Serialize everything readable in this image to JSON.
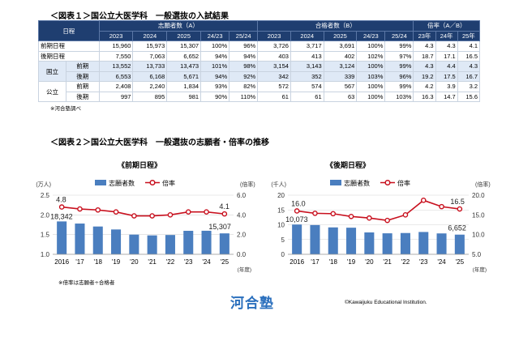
{
  "table1": {
    "title": "＜図表１＞国公立大医学科　一般選抜の入試結果",
    "h_schedule": "日程",
    "h_applicants": "志願者数（A）",
    "h_passers": "合格者数（B）",
    "h_ratio": "倍率（A／B）",
    "cols_a": [
      "2023",
      "2024",
      "2025",
      "24/23",
      "25/24"
    ],
    "cols_b": [
      "2023",
      "2024",
      "2025",
      "25/24"
    ],
    "cols_c": [
      "23年",
      "24年",
      "25年"
    ],
    "rows": [
      {
        "group": "",
        "label": "前期日程",
        "blue": false,
        "cells": [
          "15,960",
          "15,973",
          "15,307",
          "100%",
          "96%",
          "3,726",
          "3,717",
          "3,691",
          "100%",
          "99%",
          "4.3",
          "4.3",
          "4.1"
        ]
      },
      {
        "group": "",
        "label": "後期日程",
        "blue": false,
        "cells": [
          "7,550",
          "7,063",
          "6,652",
          "94%",
          "94%",
          "403",
          "413",
          "402",
          "102%",
          "97%",
          "18.7",
          "17.1",
          "16.5"
        ]
      },
      {
        "group": "国立",
        "label": "前期",
        "blue": true,
        "cells": [
          "13,552",
          "13,733",
          "13,473",
          "101%",
          "98%",
          "3,154",
          "3,143",
          "3,124",
          "100%",
          "99%",
          "4.3",
          "4.4",
          "4.3"
        ]
      },
      {
        "group": "",
        "label": "後期",
        "blue": true,
        "cells": [
          "6,553",
          "6,168",
          "5,671",
          "94%",
          "92%",
          "342",
          "352",
          "339",
          "103%",
          "96%",
          "19.2",
          "17.5",
          "16.7"
        ]
      },
      {
        "group": "公立",
        "label": "前期",
        "blue": false,
        "cells": [
          "2,408",
          "2,240",
          "1,834",
          "93%",
          "82%",
          "572",
          "574",
          "567",
          "100%",
          "99%",
          "4.2",
          "3.9",
          "3.2"
        ]
      },
      {
        "group": "",
        "label": "後期",
        "blue": false,
        "cells": [
          "997",
          "895",
          "981",
          "90%",
          "110%",
          "61",
          "61",
          "63",
          "100%",
          "103%",
          "16.3",
          "14.7",
          "15.6"
        ]
      }
    ],
    "source": "※河合塾調べ"
  },
  "figure2_title": "＜図表２＞国公立大医学科　一般選抜の志願者・倍率の推移",
  "chart_note": "※倍率は志願者÷合格者",
  "legend": {
    "bar": "志願者数",
    "line": "倍率"
  },
  "colors": {
    "bar": "#4a7ebf",
    "line": "#c8101e",
    "header": "#1f3e70",
    "rowblue": "#dfe9f6",
    "logo": "#2a6fbd"
  },
  "logo": "河合塾",
  "copyright": "©Kawaijuku Educational Institution.",
  "chart_data": [
    {
      "type": "bar",
      "title": "《前期日程》",
      "categories": [
        "2016",
        "'17",
        "'18",
        "'19",
        "'20",
        "'21",
        "'22",
        "'23",
        "'24",
        "'25"
      ],
      "series": [
        {
          "name": "志願者数",
          "axis": "left",
          "values": [
            18342,
            17800,
            17050,
            16300,
            15000,
            14800,
            14900,
            15960,
            15973,
            15307
          ]
        },
        {
          "name": "倍率",
          "axis": "right",
          "type": "line",
          "values": [
            4.8,
            4.6,
            4.5,
            4.3,
            3.9,
            3.9,
            4.0,
            4.3,
            4.3,
            4.1
          ]
        }
      ],
      "left_unit": "(万人)",
      "right_unit": "(倍率)",
      "x_unit": "(年度)",
      "ylim_left": [
        1.0,
        2.5
      ],
      "yticks_left": [
        "1.0",
        "1.5",
        "2.0",
        "2.5"
      ],
      "ylim_right": [
        0.0,
        6.0
      ],
      "yticks_right": [
        "0.0",
        "2.0",
        "4.0",
        "6.0"
      ],
      "labels": {
        "first_bar": "18,342",
        "last_bar": "15,307",
        "first_line": "4.8",
        "last_line": "4.1"
      }
    },
    {
      "type": "bar",
      "title": "《後期日程》",
      "categories": [
        "2016",
        "'17",
        "'18",
        "'19",
        "'20",
        "'21",
        "'22",
        "'23",
        "'24",
        "'25"
      ],
      "series": [
        {
          "name": "志願者数",
          "axis": "left",
          "values": [
            10073,
            9900,
            9100,
            9000,
            7400,
            7100,
            7200,
            7550,
            7063,
            6652
          ]
        },
        {
          "name": "倍率",
          "axis": "right",
          "type": "line",
          "values": [
            16.0,
            15.4,
            15.3,
            14.6,
            14.2,
            13.6,
            15.0,
            18.7,
            17.1,
            16.5
          ]
        }
      ],
      "left_unit": "(千人)",
      "right_unit": "(倍率)",
      "x_unit": "(年度)",
      "ylim_left": [
        0,
        20
      ],
      "yticks_left": [
        "0",
        "5",
        "10",
        "15",
        "20"
      ],
      "ylim_right": [
        5.0,
        20.0
      ],
      "yticks_right": [
        "5.0",
        "10.0",
        "15.0",
        "20.0"
      ],
      "labels": {
        "first_bar": "10,073",
        "last_bar": "6,652",
        "first_line": "16.0",
        "last_line": "16.5"
      }
    }
  ]
}
